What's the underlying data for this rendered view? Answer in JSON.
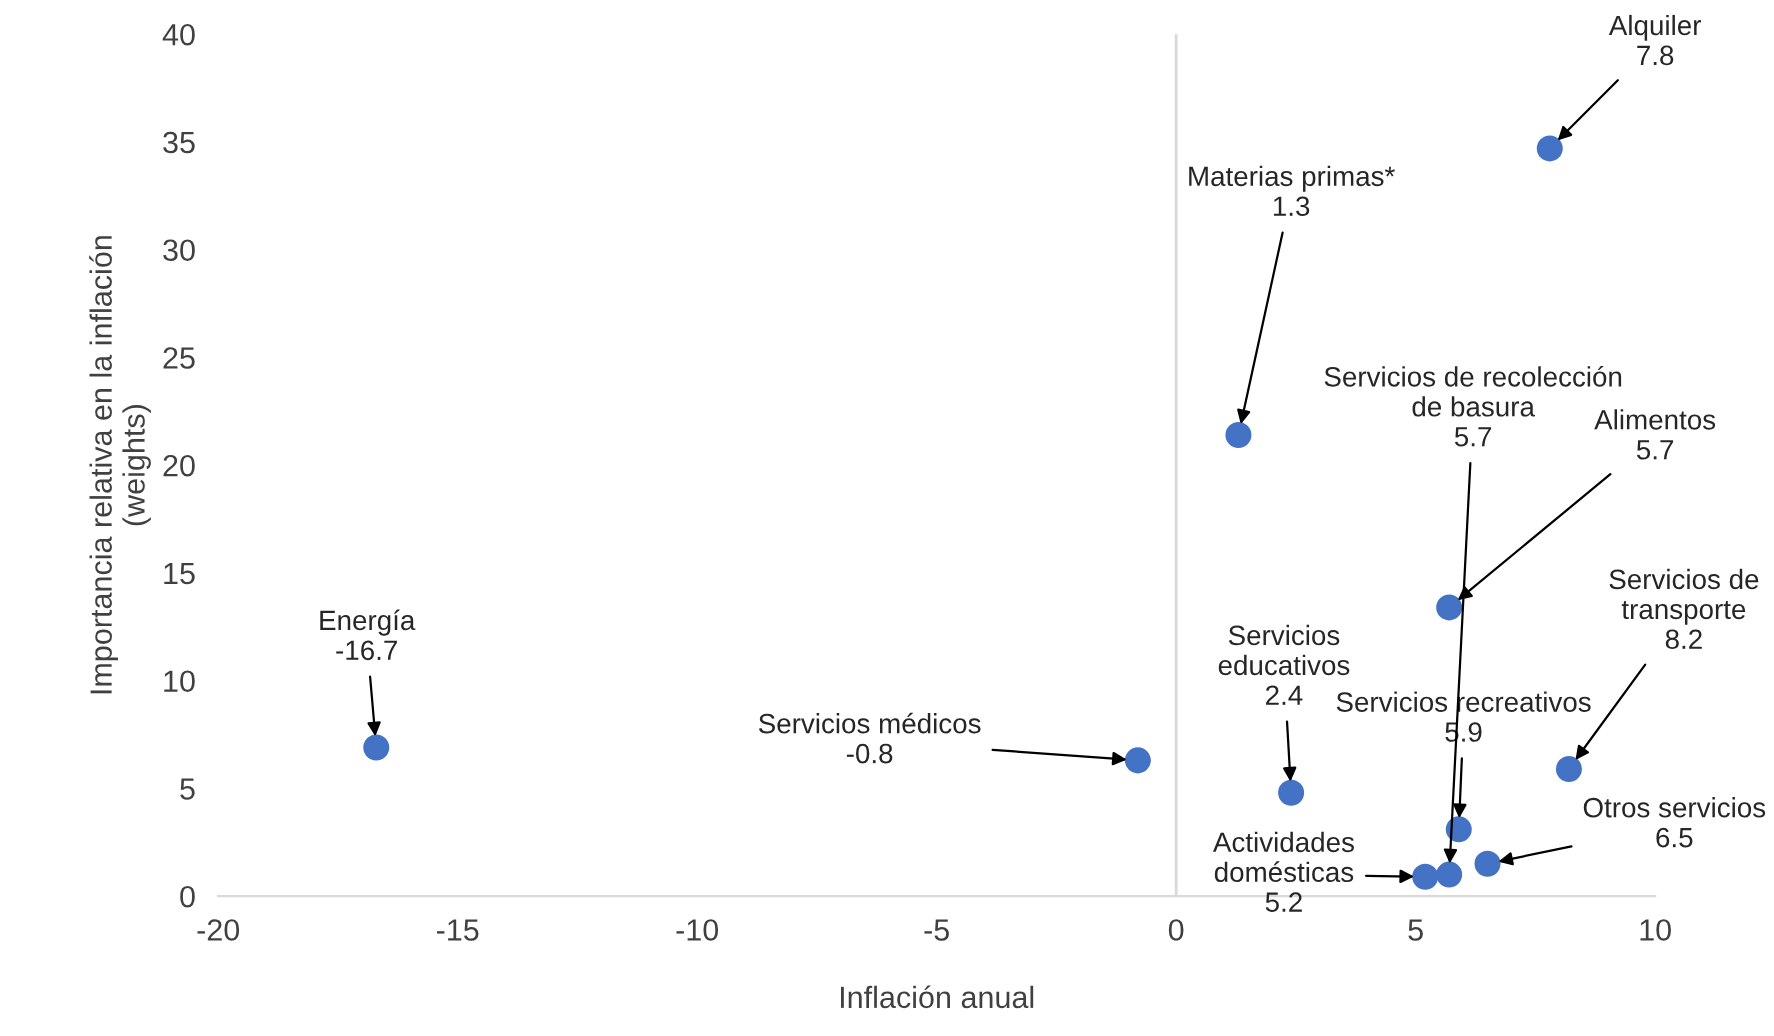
{
  "chart_data": {
    "type": "scatter",
    "xlabel": "Inflación anual",
    "ylabel": "Importancia relativa en la inflación\n(weights)",
    "x": [
      -16.7,
      -0.8,
      2.4,
      1.3,
      7.8,
      5.7,
      5.9,
      5.7,
      5.2,
      6.5,
      8.2
    ],
    "series": [
      {
        "color": "#4472c4",
        "values": [
          6.9,
          6.3,
          4.8,
          21.4,
          34.7,
          13.4,
          3.1,
          1.0,
          0.9,
          1.5,
          5.9
        ]
      }
    ],
    "xlim": [
      -20,
      10
    ],
    "xticks": [
      -20,
      -15,
      -10,
      -5,
      0,
      5,
      10
    ],
    "ylim": [
      0,
      40
    ],
    "yticks": [
      0,
      5,
      10,
      15,
      20,
      25,
      30,
      35,
      40
    ],
    "grid": false,
    "legend": false,
    "marker": "circle",
    "ref_lines": [
      {
        "axis": "x",
        "value": 0,
        "color": "#d9d9d9"
      }
    ],
    "annotations": [
      {
        "text": "Energía\n-16.7",
        "x": -16.7,
        "y": 6.9
      },
      {
        "text": "Servicios médicos\n-0.8",
        "x": -0.8,
        "y": 6.3
      },
      {
        "text": "Servicios\neducativos\n2.4",
        "x": 2.4,
        "y": 4.8
      },
      {
        "text": "Materias primas*\n1.3",
        "x": 1.3,
        "y": 21.4
      },
      {
        "text": "Alquiler\n7.8",
        "x": 7.8,
        "y": 34.7
      },
      {
        "text": "Alimentos\n5.7",
        "x": 5.7,
        "y": 13.4
      },
      {
        "text": "Servicios recreativos\n5.9",
        "x": 5.9,
        "y": 3.1
      },
      {
        "text": "Servicios de recolección\nde basura\n5.7",
        "x": 5.7,
        "y": 1.0
      },
      {
        "text": "Actividades\ndomésticas\n5.2",
        "x": 5.2,
        "y": 0.9
      },
      {
        "text": "Otros servicios\n6.5",
        "x": 6.5,
        "y": 1.5
      },
      {
        "text": "Servicios de\ntransporte\n8.2",
        "x": 8.2,
        "y": 5.9
      }
    ]
  }
}
